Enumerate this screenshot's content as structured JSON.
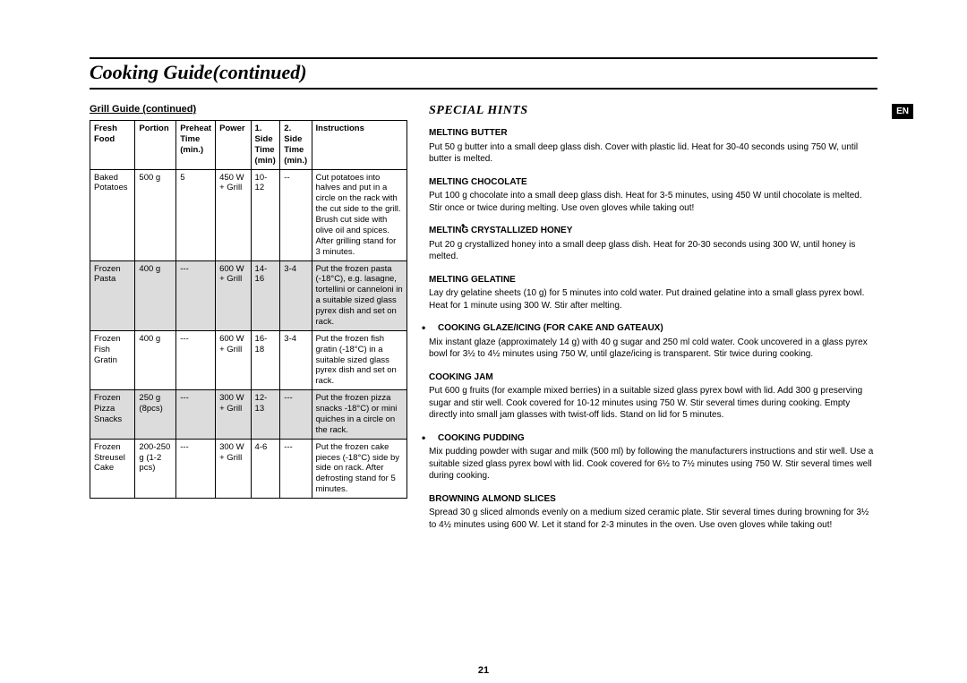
{
  "lang_tab": "EN",
  "page_title": "Cooking Guide(continued)",
  "page_number": "21",
  "left": {
    "heading": "Grill Guide (continued)",
    "columns": [
      "Fresh Food",
      "Portion",
      "Preheat Time (min.)",
      "Power",
      "1. Side Time (min)",
      "2. Side Time (min.)",
      "Instructions"
    ],
    "rows": [
      {
        "shaded": false,
        "food": "Baked Potatoes",
        "portion": "500 g",
        "preheat": "5",
        "power": "450 W + Grill",
        "side1": "10-12",
        "side2": "--",
        "instr": "Cut potatoes into halves and put in a circle on the rack with the cut side to the grill. Brush cut side with olive oil and spices. After grilling stand for 3 minutes."
      },
      {
        "shaded": true,
        "food": "Frozen Pasta",
        "portion": "400 g",
        "preheat": "---",
        "power": "600 W + Grill",
        "side1": "14-16",
        "side2": "3-4",
        "instr": "Put the frozen pasta (-18°C), e.g. lasagne, tortellini or canneloni in a suitable sized glass pyrex dish and set on rack."
      },
      {
        "shaded": false,
        "food": "Frozen Fish Gratin",
        "portion": "400 g",
        "preheat": "---",
        "power": "600 W + Grill",
        "side1": "16-18",
        "side2": "3-4",
        "instr": "Put the frozen fish gratin (-18°C) in a suitable sized glass pyrex dish and set on rack."
      },
      {
        "shaded": true,
        "food": "Frozen Pizza Snacks",
        "portion": "250 g (8pcs)",
        "preheat": "---",
        "power": "300 W + Grill",
        "side1": "12-13",
        "side2": "---",
        "instr": "Put the frozen pizza snacks -18°C) or mini quiches in a circle on the rack."
      },
      {
        "shaded": false,
        "food": "Frozen Streusel Cake",
        "portion": "200-250 g (1-2 pcs)",
        "preheat": "---",
        "power": "300 W + Grill",
        "side1": "4-6",
        "side2": "---",
        "instr": "Put the frozen cake pieces (-18°C) side by side on rack. After defrosting stand for 5 minutes."
      }
    ]
  },
  "right": {
    "title": "SPECIAL HINTS",
    "hints": [
      {
        "title": "MELTING BUTTER",
        "body": "Put 50 g butter into a small deep glass dish. Cover with plastic lid. Heat for 30-40 seconds using 750 W, until butter is melted."
      },
      {
        "title": "MELTING CHOCOLATE",
        "body": "Put 100 g chocolate into a small deep glass dish. Heat for 3-5 minutes, using 450 W until chocolate is melted. Stir once or twice during melting. Use oven gloves while taking out!"
      },
      {
        "title": "MELTING CRYSTALLIZED HONEY",
        "body": "Put 20 g crystallized honey into a small deep glass dish. Heat for 20-30 seconds using 300 W, until honey is melted."
      },
      {
        "title": "MELTING GELATINE",
        "body": "Lay dry gelatine sheets (10 g) for 5 minutes into cold water. Put drained gelatine into a small glass pyrex bowl. Heat for 1 minute using 300 W. Stir after melting."
      },
      {
        "title": "COOKING GLAZE/ICING (FOR CAKE AND GATEAUX)",
        "body": "Mix instant glaze (approximately 14 g) with 40 g sugar and 250 ml cold water. Cook uncovered in a glass pyrex bowl for 3½ to 4½ minutes using 750 W, until glaze/icing is transparent. Stir twice during cooking."
      },
      {
        "title": "COOKING JAM",
        "body": "Put 600 g fruits (for example mixed berries) in a suitable sized glass pyrex bowl with lid. Add 300 g preserving sugar and stir well. Cook covered for 10-12 minutes using 750 W. Stir several times during cooking. Empty directly into small jam glasses with twist-off lids. Stand on lid for 5 minutes."
      },
      {
        "title": "COOKING PUDDING",
        "body": "Mix pudding powder with sugar and milk (500 ml) by following the manufacturers instructions and stir well. Use a suitable sized glass pyrex bowl with lid. Cook covered for 6½ to 7½ minutes using 750 W. Stir several times well during cooking."
      },
      {
        "title": "BROWNING ALMOND SLICES",
        "body": "Spread 30 g sliced almonds evenly on a medium sized ceramic plate. Stir several times during browning for 3½ to 4½ minutes using 600 W. Let it stand for 2-3 minutes in the oven. Use oven gloves while taking out!"
      }
    ]
  }
}
